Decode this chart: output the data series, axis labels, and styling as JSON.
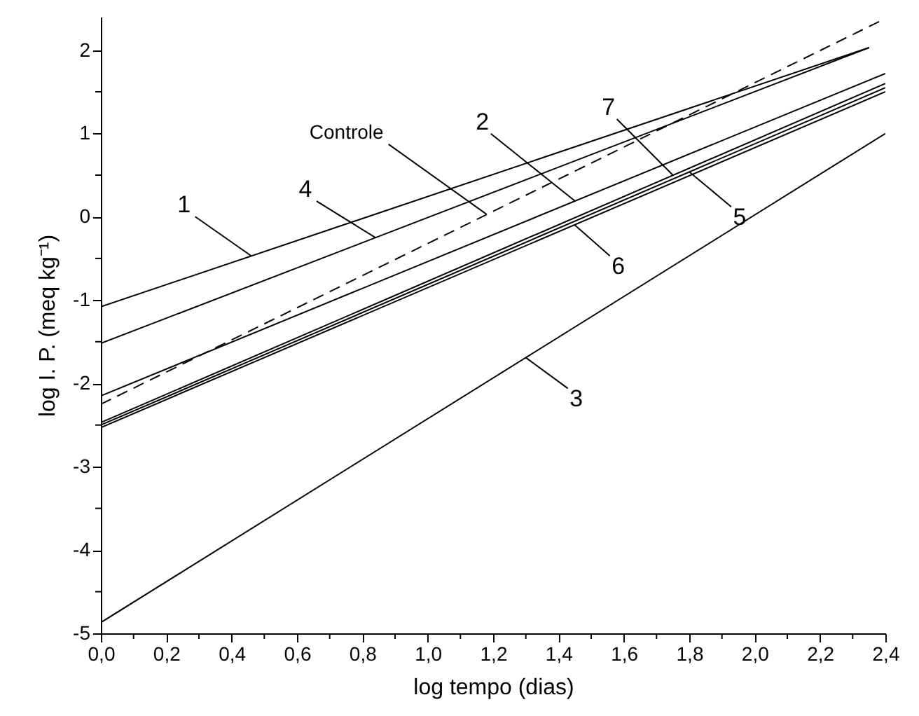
{
  "chart_data": {
    "type": "line",
    "xlabel": "log tempo (dias)",
    "ylabel": "log I. P. (meq kg⁻¹)",
    "xlim": [
      0,
      2.4
    ],
    "ylim": [
      -5,
      2.4
    ],
    "xticks": [
      {
        "value": 0,
        "label": "0,0"
      },
      {
        "value": 0.1,
        "label": null
      },
      {
        "value": 0.2,
        "label": "0,2"
      },
      {
        "value": 0.3,
        "label": null
      },
      {
        "value": 0.4,
        "label": "0,4"
      },
      {
        "value": 0.5,
        "label": null
      },
      {
        "value": 0.6,
        "label": "0,6"
      },
      {
        "value": 0.7,
        "label": null
      },
      {
        "value": 0.8,
        "label": "0,8"
      },
      {
        "value": 0.9,
        "label": null
      },
      {
        "value": 1.0,
        "label": "1,0"
      },
      {
        "value": 1.1,
        "label": null
      },
      {
        "value": 1.2,
        "label": "1,2"
      },
      {
        "value": 1.3,
        "label": null
      },
      {
        "value": 1.4,
        "label": "1,4"
      },
      {
        "value": 1.5,
        "label": null
      },
      {
        "value": 1.6,
        "label": "1,6"
      },
      {
        "value": 1.7,
        "label": null
      },
      {
        "value": 1.8,
        "label": "1,8"
      },
      {
        "value": 1.9,
        "label": null
      },
      {
        "value": 2.0,
        "label": "2,0"
      },
      {
        "value": 2.1,
        "label": null
      },
      {
        "value": 2.2,
        "label": "2,2"
      },
      {
        "value": 2.3,
        "label": null
      },
      {
        "value": 2.4,
        "label": "2,4"
      }
    ],
    "yticks": [
      -5,
      {
        "value": -4.5,
        "label": null
      },
      -4,
      {
        "value": -3.5,
        "label": null
      },
      -3,
      {
        "value": -2.5,
        "label": null
      },
      -2,
      {
        "value": -1.5,
        "label": null
      },
      -1,
      {
        "value": -0.5,
        "label": null
      },
      0,
      {
        "value": 0.5,
        "label": null
      },
      1,
      {
        "value": 1.5,
        "label": null
      },
      2
    ],
    "series": [
      {
        "color": "#000000",
        "line_style": "solid",
        "x": [
          0,
          2.35
        ],
        "values": [
          -1.08,
          2.03
        ]
      },
      {
        "color": "#000000",
        "line_style": "solid",
        "x": [
          0,
          2.35
        ],
        "values": [
          -1.52,
          2.03
        ]
      },
      {
        "color": "#000000",
        "line_style": "dashed",
        "x": [
          0,
          2.4
        ],
        "values": [
          -2.25,
          2.38
        ]
      },
      {
        "color": "#000000",
        "line_style": "solid",
        "x": [
          0,
          2.4
        ],
        "values": [
          -2.15,
          1.72
        ]
      },
      {
        "color": "#000000",
        "line_style": "solid",
        "x": [
          0,
          2.4
        ],
        "values": [
          -2.47,
          1.6
        ]
      },
      {
        "color": "#000000",
        "line_style": "solid",
        "x": [
          0,
          2.4
        ],
        "values": [
          -2.5,
          1.55
        ]
      },
      {
        "color": "#000000",
        "line_style": "solid",
        "x": [
          0,
          2.4
        ],
        "values": [
          -2.53,
          1.5
        ]
      },
      {
        "color": "#000000",
        "line_style": "solid",
        "x": [
          0,
          2.4
        ],
        "values": [
          -4.87,
          1.0
        ]
      }
    ],
    "annotations": [
      {
        "text": "1",
        "x": 0.46,
        "y": -0.47
      },
      {
        "text": "4",
        "x": 0.84,
        "y": -0.25
      },
      {
        "text": "Controle",
        "x": 1.18,
        "y": 0.03
      },
      {
        "text": "2",
        "x": 1.45,
        "y": 0.19
      },
      {
        "text": "7",
        "x": 1.75,
        "y": 0.5
      },
      {
        "text": "5",
        "x": 1.8,
        "y": 0.54
      },
      {
        "text": "6",
        "x": 1.45,
        "y": -0.1
      },
      {
        "text": "3",
        "x": 1.3,
        "y": -1.69
      }
    ]
  }
}
